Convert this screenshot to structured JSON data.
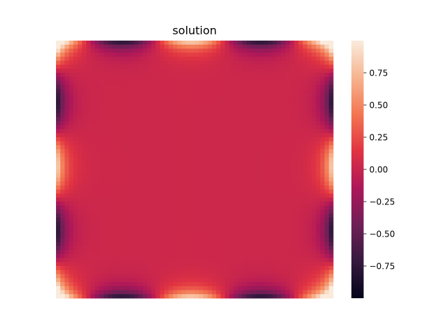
{
  "chart_data": {
    "type": "heatmap",
    "title": "solution",
    "xlabel": "",
    "ylabel": "",
    "x_ticks_shown": false,
    "y_ticks_shown": false,
    "grid": false,
    "grid_size": [
      64,
      64
    ],
    "value_range": [
      -1,
      1
    ],
    "colormap": "rocket",
    "colormap_stops": [
      "#03051a",
      "#35193e",
      "#701f57",
      "#ad1759",
      "#e13342",
      "#f37651",
      "#f6b48f",
      "#faebdd"
    ],
    "field_description": "u(x,y) concentrated near boundary: strong extremes at edges, near zero in interior",
    "colorbar": {
      "ticks": [
        {
          "value": 0.75,
          "label": "0.75"
        },
        {
          "value": 0.5,
          "label": "0.50"
        },
        {
          "value": 0.25,
          "label": "0.25"
        },
        {
          "value": 0.0,
          "label": "0.00"
        },
        {
          "value": -0.25,
          "label": "−0.25"
        },
        {
          "value": -0.5,
          "label": "−0.50"
        },
        {
          "value": -0.75,
          "label": "−0.75"
        }
      ]
    }
  }
}
